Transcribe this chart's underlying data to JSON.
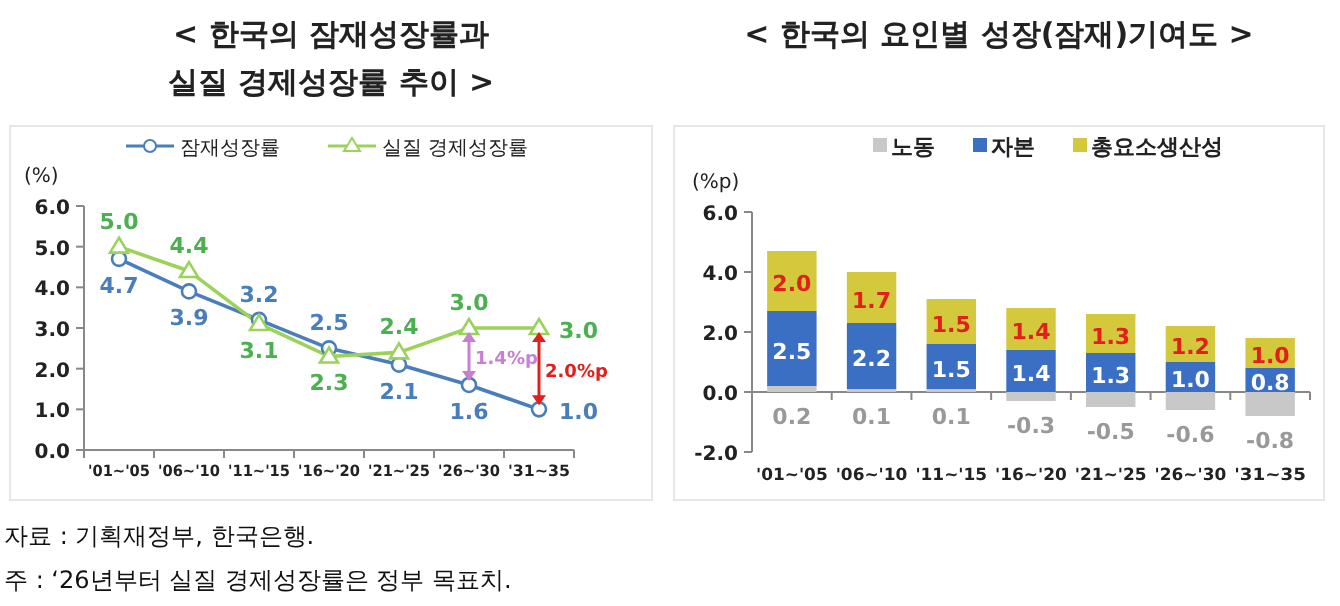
{
  "chart_data": [
    {
      "type": "line",
      "title": "< 한국의 잠재성장률과 실질 경제성장률 추이 >",
      "ylabel": "(%)",
      "categories": [
        "'01~'05",
        "'06~'10",
        "'11~'15",
        "'16~'20",
        "'21~'25",
        "'26~'30",
        "'31~35"
      ],
      "series": [
        {
          "name": "잠재성장률",
          "color": "#4a7ebb",
          "marker": "circle",
          "values": [
            4.7,
            3.9,
            3.2,
            2.5,
            2.1,
            1.6,
            1.0
          ],
          "value_labels": [
            "4.7",
            "3.9",
            "3.2",
            "2.5",
            "2.1",
            "1.6",
            "1.0"
          ]
        },
        {
          "name": "실질 경제성장률",
          "color": "#9bd25a",
          "marker": "triangle",
          "values": [
            5.0,
            4.4,
            3.1,
            2.3,
            2.4,
            3.0,
            3.0
          ],
          "value_labels": [
            "5.0",
            "4.4",
            "3.1",
            "2.3",
            "2.4",
            "3.0",
            "3.0"
          ]
        }
      ],
      "ylim": [
        0,
        6
      ],
      "yticks": [
        {
          "value": 0,
          "label": "0.0"
        },
        {
          "value": 1,
          "label": "1.0"
        },
        {
          "value": 2,
          "label": "2.0"
        },
        {
          "value": 3,
          "label": "3.0"
        },
        {
          "value": 4,
          "label": "4.0"
        },
        {
          "value": 5,
          "label": "5.0"
        },
        {
          "value": 6,
          "label": "6.0"
        }
      ],
      "legend": "top right",
      "annotations": [
        "1.4%p",
        "2.0%p",
        "자료 : 기획재정부, 한국은행.",
        "주 : ‘26년부터 실질 경제성장률은 정부 목표치."
      ]
    },
    {
      "type": "bar",
      "stacked": true,
      "title": "< 한국의 요인별 성장(잠재)기여도 >",
      "ylabel": "(%p)",
      "categories": [
        "'01~'05",
        "'06~'10",
        "'11~'15",
        "'16~'20",
        "'21~'25",
        "'26~'30",
        "'31~35"
      ],
      "series": [
        {
          "name": "노동",
          "color": "#c8c8c8",
          "values": [
            0.2,
            0.1,
            0.1,
            -0.3,
            -0.5,
            -0.6,
            -0.8
          ],
          "value_labels": [
            "0.2",
            "0.1",
            "0.1",
            "-0.3",
            "-0.5",
            "-0.6",
            "-0.8"
          ]
        },
        {
          "name": "자본",
          "color": "#3a6fc4",
          "values": [
            2.5,
            2.2,
            1.5,
            1.4,
            1.3,
            1.0,
            0.8
          ],
          "value_labels": [
            "2.5",
            "2.2",
            "1.5",
            "1.4",
            "1.3",
            "1.0",
            "0.8"
          ]
        },
        {
          "name": "총요소생산성",
          "color": "#d4c83c",
          "values": [
            2.0,
            1.7,
            1.5,
            1.4,
            1.3,
            1.2,
            1.0
          ],
          "value_labels": [
            "2.0",
            "1.7",
            "1.5",
            "1.4",
            "1.3",
            "1.2",
            "1.0"
          ]
        }
      ],
      "ylim": [
        -2,
        6
      ],
      "yticks": [
        {
          "value": -2,
          "label": "-2.0"
        },
        {
          "value": 0,
          "label": "0.0"
        },
        {
          "value": 2,
          "label": "2.0"
        },
        {
          "value": 4,
          "label": "4.0"
        },
        {
          "value": 6,
          "label": "6.0"
        }
      ],
      "legend": "top"
    }
  ]
}
